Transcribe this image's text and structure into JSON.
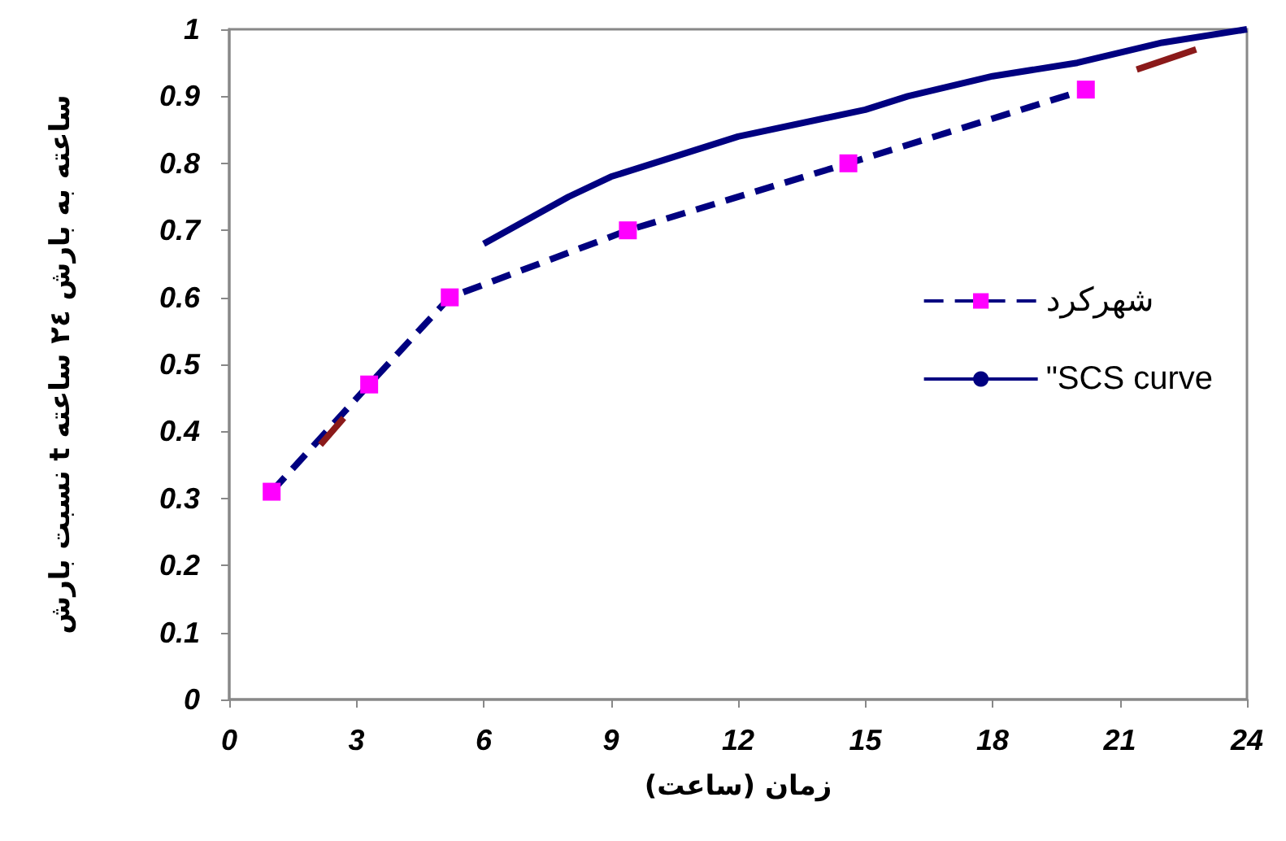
{
  "chart_data": {
    "type": "line",
    "xlabel": "زمان (ساعت)",
    "ylabel": "نسبت بارش t ساعته به بارش ٢٤ ساعته",
    "xlim": [
      0,
      24
    ],
    "xticks": [
      0,
      3,
      6,
      9,
      12,
      15,
      18,
      21,
      24
    ],
    "ylim": [
      0,
      1
    ],
    "yticks": [
      0,
      0.1,
      0.2,
      0.3,
      0.4,
      0.5,
      0.6,
      0.7,
      0.8,
      0.9,
      1
    ],
    "grid": false,
    "legend": "right",
    "series": [
      {
        "name": "شهرکرد",
        "color": "#000080",
        "line_style": "dashed",
        "marker": "square",
        "x": [
          1.0,
          3.3,
          5.2,
          9.4,
          14.6,
          20.2
        ],
        "values": [
          0.31,
          0.47,
          0.6,
          0.7,
          0.8,
          0.91
        ]
      },
      {
        "name": "\"SCS curve",
        "color": "#000080",
        "line_style": "solid",
        "marker": "none",
        "x": [
          6,
          8,
          9,
          12,
          15,
          16,
          18,
          20,
          22,
          24
        ],
        "values": [
          0.68,
          0.75,
          0.78,
          0.84,
          0.88,
          0.9,
          0.93,
          0.95,
          0.98,
          1.0
        ]
      },
      {
        "color": "#8b1a1a",
        "line_style": "solid",
        "marker": "none",
        "x": [
          2.15,
          2.7,
          12,
          21.4,
          22.8
        ],
        "values": [
          0.38,
          0.42,
          null,
          0.94,
          0.97
        ]
      }
    ]
  }
}
